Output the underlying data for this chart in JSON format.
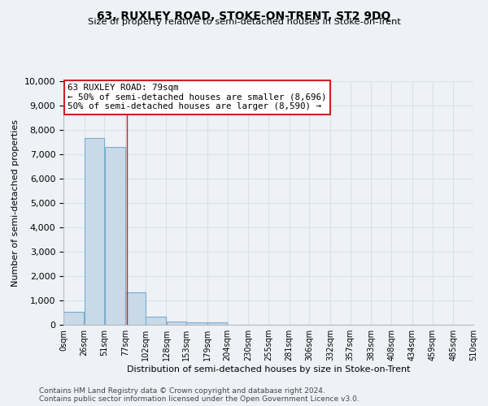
{
  "title": "63, RUXLEY ROAD, STOKE-ON-TRENT, ST2 9DQ",
  "subtitle": "Size of property relative to semi-detached houses in Stoke-on-Trent",
  "xlabel": "Distribution of semi-detached houses by size in Stoke-on-Trent",
  "ylabel": "Number of semi-detached properties",
  "footer_line1": "Contains HM Land Registry data © Crown copyright and database right 2024.",
  "footer_line2": "Contains public sector information licensed under the Open Government Licence v3.0.",
  "bar_edges": [
    0,
    26,
    51,
    77,
    102,
    128,
    153,
    179,
    204,
    230,
    255,
    281,
    306,
    332,
    357,
    383,
    408,
    434,
    459,
    485,
    510
  ],
  "bar_heights": [
    550,
    7650,
    7300,
    1320,
    350,
    150,
    100,
    100,
    0,
    0,
    0,
    0,
    0,
    0,
    0,
    0,
    0,
    0,
    0,
    0
  ],
  "bar_color": "#c9d9e8",
  "bar_edgecolor": "#7aadcc",
  "vline_x": 79,
  "vline_color": "#cc2222",
  "annotation_text_line1": "63 RUXLEY ROAD: 79sqm",
  "annotation_text_line2": "← 50% of semi-detached houses are smaller (8,696)",
  "annotation_text_line3": "50% of semi-detached houses are larger (8,590) →",
  "annotation_box_edgecolor": "#cc2222",
  "annotation_box_facecolor": "#ffffff",
  "ylim": [
    0,
    10000
  ],
  "yticks": [
    0,
    1000,
    2000,
    3000,
    4000,
    5000,
    6000,
    7000,
    8000,
    9000,
    10000
  ],
  "xtick_labels": [
    "0sqm",
    "26sqm",
    "51sqm",
    "77sqm",
    "102sqm",
    "128sqm",
    "153sqm",
    "179sqm",
    "204sqm",
    "230sqm",
    "255sqm",
    "281sqm",
    "306sqm",
    "332sqm",
    "357sqm",
    "383sqm",
    "408sqm",
    "434sqm",
    "459sqm",
    "485sqm",
    "510sqm"
  ],
  "grid_color": "#d8e0ea",
  "background_color": "#eef2f7",
  "plot_bg_color": "#eef2f7"
}
